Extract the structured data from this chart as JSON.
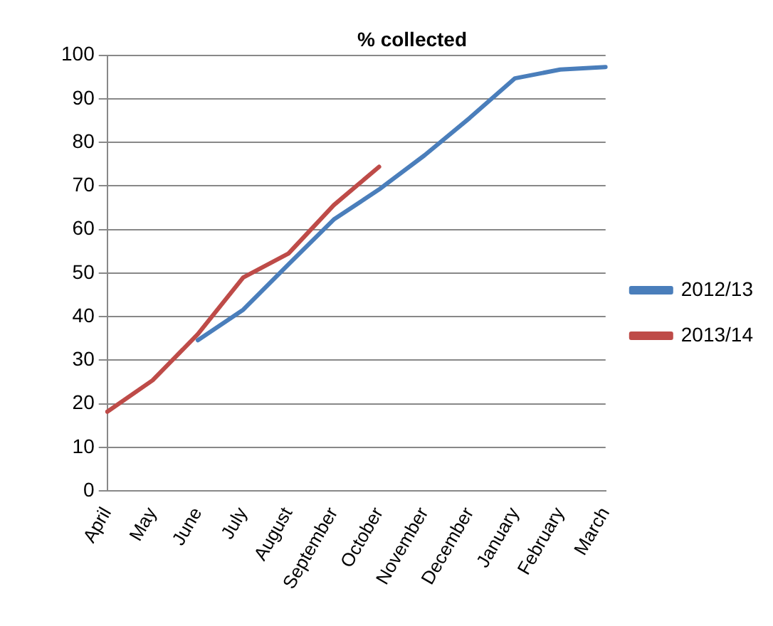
{
  "chart_data": {
    "type": "line",
    "title": "% collected",
    "categories": [
      "April",
      "May",
      "June",
      "July",
      "August",
      "September",
      "October",
      "November",
      "December",
      "January",
      "February",
      "March"
    ],
    "series": [
      {
        "name": "2012/13",
        "color": "#4a7ebb",
        "values": [
          null,
          null,
          34.6,
          41.6,
          52,
          62.3,
          69.2,
          77,
          85.6,
          94.7,
          96.7,
          97.3
        ]
      },
      {
        "name": "2013/14",
        "color": "#be4b48",
        "values": [
          18.2,
          25.4,
          36,
          49,
          54.5,
          65.6,
          74.4,
          null,
          null,
          null,
          null,
          null
        ]
      }
    ],
    "ylim": [
      0,
      100
    ],
    "yticks": [
      0,
      10,
      20,
      30,
      40,
      50,
      60,
      70,
      80,
      90,
      100
    ],
    "grid": "y",
    "legend": "right",
    "marker": "none",
    "line_style": "solid"
  }
}
